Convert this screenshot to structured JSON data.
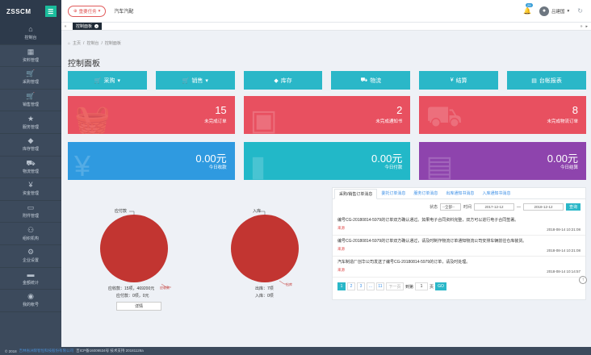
{
  "sidebar": {
    "logo": "ZSSCM",
    "logo_badge": "☰",
    "items": [
      {
        "label": "控制台",
        "icon": "⌂"
      },
      {
        "label": "资料管理",
        "icon": "▦"
      },
      {
        "label": "采购管理",
        "icon": "🛒"
      },
      {
        "label": "销售管理",
        "icon": "🛒"
      },
      {
        "label": "服务管理",
        "icon": "★"
      },
      {
        "label": "库存管理",
        "icon": "◆"
      },
      {
        "label": "物流管理",
        "icon": "⛟"
      },
      {
        "label": "资金管理",
        "icon": "¥"
      },
      {
        "label": "附件管理",
        "icon": "▭"
      },
      {
        "label": "组织机构",
        "icon": "⚇"
      },
      {
        "label": "企业设置",
        "icon": "⚙"
      },
      {
        "label": "金额统计",
        "icon": "▬"
      },
      {
        "label": "我的帐号",
        "icon": "◉"
      }
    ]
  },
  "topbar": {
    "todo_label": "重要任务",
    "company": "汽车汽配",
    "bell_count": "29",
    "user_name": "吕建国",
    "refresh_icon": "↻"
  },
  "tabbar": {
    "active_tab": "控制面板"
  },
  "breadcrumb": {
    "home": "主页",
    "sep": "/",
    "level1": "控制台",
    "level2": "控制面板"
  },
  "page_title": "控制面板",
  "modules": [
    {
      "label": "采购",
      "icon": "🛒",
      "caret": "▾"
    },
    {
      "label": "销售",
      "icon": "🛒",
      "caret": "▾"
    },
    {
      "label": "库存",
      "icon": "◆",
      "caret": ""
    },
    {
      "label": "物流",
      "icon": "⛟",
      "caret": ""
    },
    {
      "label": "结算",
      "icon": "¥",
      "caret": ""
    },
    {
      "label": "台帐报表",
      "icon": "▤",
      "caret": ""
    }
  ],
  "cards_row1": [
    {
      "value": "15",
      "label": "未完成订单",
      "watermark": "🧺"
    },
    {
      "value": "2",
      "label": "未完成通知书",
      "watermark": "▣"
    },
    {
      "value": "8",
      "label": "未完成物流订单",
      "watermark": "⛟"
    }
  ],
  "cards_row2": [
    {
      "value": "0.00元",
      "label": "今日收款",
      "watermark": "¥"
    },
    {
      "value": "0.00元",
      "label": "今日付款",
      "watermark": "▮"
    },
    {
      "value": "0.00元",
      "label": "今日结算",
      "watermark": "▤"
    }
  ],
  "pies": {
    "left": {
      "slice_label_top": "应付款",
      "slice_label_side": "应收款",
      "line1": "应收款：15项，469200元",
      "line2": "应付款：0项，0元",
      "button": "详情",
      "color": "#c23531"
    },
    "right": {
      "slice_label_top": "入库",
      "slice_label_side": "出库",
      "line1": "出库：7项",
      "line2": "入库：0项",
      "color": "#c23531"
    }
  },
  "messages": {
    "tabs": [
      "采购/销售订单消息",
      "委托订单消息",
      "服务订单消息",
      "出库通知书消息",
      "入库通知书消息"
    ],
    "filter": {
      "status_label": "状态",
      "status_value": "--全部--",
      "time_label": "时间",
      "date_from": "2017-12-12",
      "sep": "—",
      "date_to": "2018-12-12",
      "query": "查询"
    },
    "items": [
      {
        "text": "编号CG-20180814-5979的订单双方确认通过。如果电子合同资料完整，双方可以进行电子合同签署。",
        "src": "来源",
        "time": "2018-08-14 10:21:08"
      },
      {
        "text": "编号CG-20180814-5979的订单双方确认通过，请及时制作物流订单通知物流公司安排车辆前往仓库装货。",
        "src": "来源",
        "time": "2018-08-14 10:21:08"
      },
      {
        "text": "汽车制造厂创华公司发送了编号CG-20180814-5979的订单，请及时处理。",
        "src": "来源",
        "time": "2018-08-14 10:14:57"
      }
    ],
    "pager": {
      "pages": [
        "1",
        "2",
        "3",
        "...",
        "11"
      ],
      "next": "下一页",
      "jump_label": "到第",
      "jump_value": "1",
      "page_unit": "页",
      "go": "GO"
    }
  },
  "footer": {
    "copyright": "© 2018",
    "link": "吉林省洲际智恒科技股份有限公司",
    "icp": "吉ICP备16009534号 技术支持 20181128a"
  },
  "colors": {
    "sidebar_bg": "#3c4a5c",
    "accent": "#2ab7c8",
    "red": "#e85060",
    "blue": "#2f9ae0",
    "purple": "#8e44ad",
    "pie": "#c23531"
  }
}
